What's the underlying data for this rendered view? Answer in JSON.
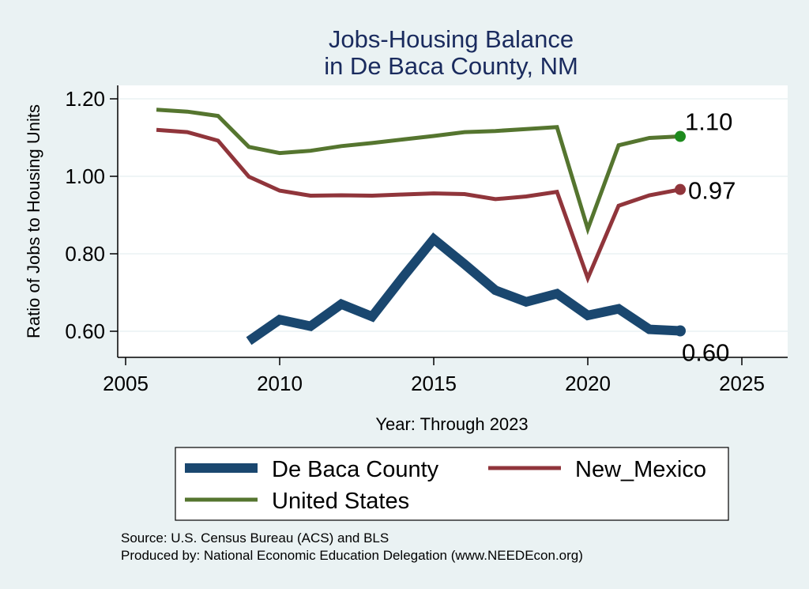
{
  "chart_data": {
    "type": "line",
    "title": [
      "Jobs-Housing Balance",
      "in De Baca County, NM"
    ],
    "xlabel": "Year: Through 2023",
    "ylabel": "Ratio of Jobs to Housing Units",
    "xlim": [
      2005,
      2025
    ],
    "ylim": [
      0.57,
      1.23
    ],
    "xticks": [
      2005,
      2010,
      2015,
      2020,
      2025
    ],
    "xtick_labels": [
      "2005",
      "2010",
      "2015",
      "2020",
      "2025"
    ],
    "yticks": [
      0.6,
      0.8,
      1.0,
      1.2
    ],
    "ytick_labels": [
      "0.60",
      "0.80",
      "1.00",
      "1.20"
    ],
    "grid": "horizontal",
    "legend_position": "bottom",
    "series": [
      {
        "name": "De Baca County",
        "color": "#1a476f",
        "line_width": "thick",
        "x": [
          2009,
          2010,
          2011,
          2012,
          2013,
          2014,
          2015,
          2016,
          2017,
          2018,
          2019,
          2020,
          2021,
          2022,
          2023
        ],
        "y": [
          0.575,
          0.63,
          0.613,
          0.67,
          0.638,
          0.74,
          0.838,
          0.773,
          0.706,
          0.676,
          0.697,
          0.641,
          0.658,
          0.605,
          0.601
        ],
        "end_label": "0.60"
      },
      {
        "name": "New_Mexico",
        "color": "#90353b",
        "line_width": "medium",
        "x": [
          2006,
          2007,
          2008,
          2009,
          2010,
          2011,
          2012,
          2013,
          2014,
          2015,
          2016,
          2017,
          2018,
          2019,
          2020,
          2021,
          2022,
          2023
        ],
        "y": [
          1.12,
          1.114,
          1.092,
          0.999,
          0.963,
          0.95,
          0.951,
          0.95,
          0.953,
          0.956,
          0.954,
          0.941,
          0.948,
          0.96,
          0.737,
          0.924,
          0.951,
          0.966
        ],
        "end_label": "0.97"
      },
      {
        "name": "United States",
        "color": "#55752f",
        "line_width": "medium",
        "x": [
          2006,
          2007,
          2008,
          2009,
          2010,
          2011,
          2012,
          2013,
          2014,
          2015,
          2016,
          2017,
          2018,
          2019,
          2020,
          2021,
          2022,
          2023
        ],
        "y": [
          1.172,
          1.167,
          1.156,
          1.076,
          1.06,
          1.066,
          1.078,
          1.086,
          1.095,
          1.104,
          1.114,
          1.117,
          1.122,
          1.127,
          0.864,
          1.08,
          1.099,
          1.103
        ],
        "end_label": "1.10",
        "end_marker_color": "#1d8a1d"
      }
    ],
    "source_lines": [
      "Source: U.S. Census Bureau (ACS) and BLS",
      "Produced by: National Economic Education Delegation (www.NEEDEcon.org)"
    ]
  }
}
